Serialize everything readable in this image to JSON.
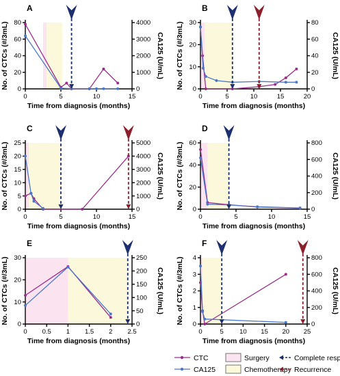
{
  "colors": {
    "ctc": "#9b2d8a",
    "ca125": "#4a78c8",
    "surgery": "#fbe3ef",
    "chemo": "#fbf8dc",
    "complete_response": "#1c2f6e",
    "recurrence": "#8b1f2a"
  },
  "legend": {
    "ctc": "CTC",
    "ca125": "CA125",
    "surgery": "Surgery",
    "chemo": "Chemotherapy",
    "complete_response": "Complete response",
    "recurrence": "Recurrence"
  },
  "chart_data": [
    {
      "type": "line",
      "panel": "A",
      "xlabel": "Time from diagnosis (months)",
      "ylabel": "No. of CTCs (#/3mL)",
      "y2label": "CA125 (U/mL)",
      "xlim": [
        0,
        15
      ],
      "xticks": [
        0,
        5,
        10,
        15
      ],
      "ylim": [
        0,
        80
      ],
      "yticks": [
        0,
        20,
        40,
        60,
        80
      ],
      "y2lim": [
        0,
        4000
      ],
      "y2ticks": [
        0,
        1000,
        2000,
        3000,
        4000
      ],
      "surgery": [
        2.5,
        3
      ],
      "chemo": [
        3,
        5.2
      ],
      "complete_response": 6.5,
      "recurrence": null,
      "series": [
        {
          "name": "CTC",
          "axis": "left",
          "x": [
            0,
            5,
            5.8,
            6.5,
            9,
            11,
            13
          ],
          "y": [
            78,
            2,
            7,
            0,
            0,
            24,
            7
          ]
        },
        {
          "name": "CA125",
          "axis": "right",
          "x": [
            0,
            5,
            6.5,
            9,
            10,
            11,
            13
          ],
          "y": [
            3200,
            40,
            15,
            10,
            10,
            10,
            10
          ]
        }
      ]
    },
    {
      "type": "line",
      "panel": "B",
      "xlabel": "Time from diagnosis (months)",
      "ylabel": "No. of CTCs (#/3mL)",
      "y2label": "CA125 (U/mL)",
      "xlim": [
        0,
        20
      ],
      "xticks": [
        0,
        5,
        10,
        15,
        20
      ],
      "ylim": [
        0,
        30
      ],
      "yticks": [
        0,
        10,
        20,
        30
      ],
      "y2lim": [
        0,
        80
      ],
      "y2ticks": [
        0,
        20,
        40,
        60,
        80
      ],
      "surgery": [
        0,
        0.8
      ],
      "chemo": [
        0.8,
        6
      ],
      "complete_response": 6,
      "recurrence": 11,
      "series": [
        {
          "name": "CTC",
          "axis": "left",
          "x": [
            0,
            0.4,
            1,
            6,
            11,
            14,
            16,
            18
          ],
          "y": [
            28,
            15,
            0,
            0,
            1,
            2,
            5,
            9
          ]
        },
        {
          "name": "CA125",
          "axis": "right",
          "x": [
            0,
            0.5,
            1,
            3,
            6,
            11,
            16,
            18
          ],
          "y": [
            75,
            25,
            15,
            10,
            8,
            9,
            8,
            8
          ]
        }
      ]
    },
    {
      "type": "line",
      "panel": "C",
      "xlabel": "Time from diagnosis (months)",
      "ylabel": "No. of CTCs (#/3mL)",
      "y2label": "CA125 (U/mL)",
      "xlim": [
        0,
        15
      ],
      "xticks": [
        0,
        5,
        10,
        15
      ],
      "ylim": [
        0,
        25
      ],
      "yticks": [
        0,
        5,
        10,
        15,
        20,
        25
      ],
      "y2lim": [
        0,
        5000
      ],
      "y2ticks": [
        0,
        1000,
        2000,
        3000,
        4000,
        5000
      ],
      "surgery": [
        0,
        0.5
      ],
      "chemo": [
        0.5,
        5
      ],
      "complete_response": 5,
      "recurrence": 14.5,
      "series": [
        {
          "name": "CTC",
          "axis": "left",
          "x": [
            0,
            0.8,
            1.2,
            2.5,
            8,
            14.5
          ],
          "y": [
            5,
            6,
            4,
            0,
            0,
            20
          ]
        },
        {
          "name": "CA125",
          "axis": "right",
          "x": [
            0,
            0.8,
            1.2,
            2.5
          ],
          "y": [
            4000,
            1200,
            600,
            60
          ]
        }
      ]
    },
    {
      "type": "line",
      "panel": "D",
      "xlabel": "Time from diagnosis (months)",
      "ylabel": "No. of CTCs (#/3mL)",
      "y2label": "CA125 (U/mL)",
      "xlim": [
        0,
        15
      ],
      "xticks": [
        0,
        5,
        10,
        15
      ],
      "ylim": [
        0,
        60
      ],
      "yticks": [
        0,
        20,
        40,
        60
      ],
      "y2lim": [
        0,
        800
      ],
      "y2ticks": [
        0,
        200,
        400,
        600,
        800
      ],
      "surgery": [
        0,
        1
      ],
      "chemo": [
        1,
        4
      ],
      "complete_response": 4,
      "recurrence": null,
      "series": [
        {
          "name": "CTC",
          "axis": "left",
          "x": [
            0,
            1,
            4,
            8,
            14
          ],
          "y": [
            54,
            6,
            4,
            2,
            1
          ]
        },
        {
          "name": "CA125",
          "axis": "right",
          "x": [
            0,
            1,
            4,
            8,
            14
          ],
          "y": [
            620,
            60,
            50,
            30,
            15
          ]
        }
      ]
    },
    {
      "type": "line",
      "panel": "E",
      "xlabel": "Time from diagnosis (months)",
      "ylabel": "No. of CTCs (#/3mL)",
      "y2label": "CA125 (U/mL)",
      "xlim": [
        0,
        2.5
      ],
      "xticks": [
        0.0,
        0.5,
        1.0,
        1.5,
        2.0,
        2.5
      ],
      "ylim": [
        0,
        30
      ],
      "yticks": [
        0,
        10,
        20,
        30
      ],
      "y2lim": [
        0,
        250
      ],
      "y2ticks": [
        0,
        50,
        100,
        150,
        200,
        250
      ],
      "surgery": [
        0,
        1
      ],
      "chemo": [
        1,
        2.4
      ],
      "complete_response": 2.4,
      "recurrence": null,
      "series": [
        {
          "name": "CTC",
          "axis": "left",
          "x": [
            0,
            1,
            2
          ],
          "y": [
            13,
            26,
            3
          ]
        },
        {
          "name": "CA125",
          "axis": "right",
          "x": [
            0,
            1,
            2
          ],
          "y": [
            70,
            215,
            38
          ]
        }
      ]
    },
    {
      "type": "line",
      "panel": "F",
      "xlabel": "Time from diagnosis (months)",
      "ylabel": "No. of CTCs (#/3mL)",
      "y2label": "CA125 (U/mL)",
      "xlim": [
        0,
        25
      ],
      "xticks": [
        0,
        5,
        10,
        15,
        20,
        25
      ],
      "ylim": [
        0,
        4
      ],
      "yticks": [
        0,
        1,
        2,
        3,
        4
      ],
      "y2lim": [
        0,
        800
      ],
      "y2ticks": [
        0,
        200,
        400,
        600,
        800
      ],
      "surgery": [
        0,
        0.5
      ],
      "chemo": [
        0.5,
        5
      ],
      "complete_response": 5,
      "recurrence": 24,
      "series": [
        {
          "name": "CTC",
          "axis": "left",
          "x": [
            0,
            0.5,
            1,
            20
          ],
          "y": [
            2.5,
            0.8,
            0,
            3
          ]
        },
        {
          "name": "CA125",
          "axis": "right",
          "x": [
            0,
            0.5,
            1,
            20
          ],
          "y": [
            700,
            150,
            60,
            20
          ]
        }
      ]
    }
  ]
}
